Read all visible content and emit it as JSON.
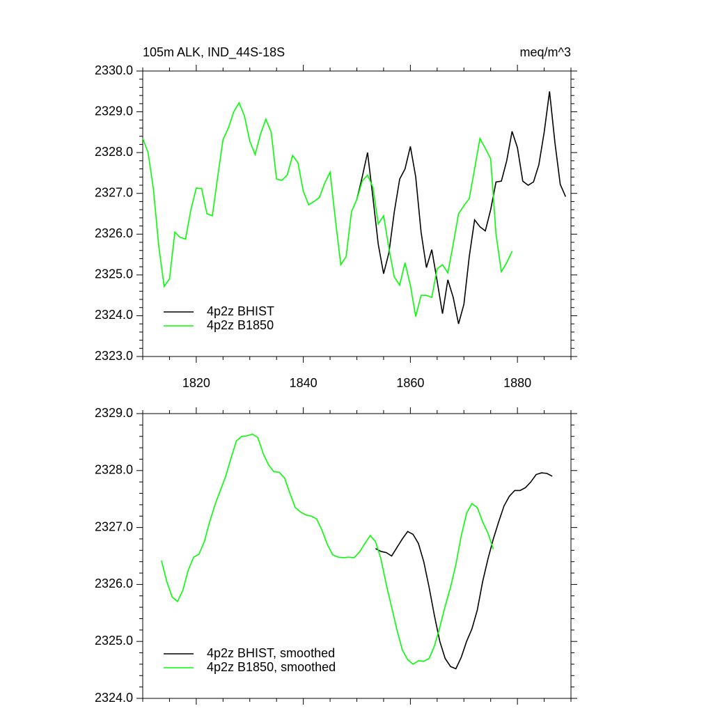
{
  "chart_data": [
    {
      "type": "line",
      "title": "105m ALK, IND_44S-18S",
      "subtitle": "meq/m^3",
      "xlim": [
        1810,
        1890
      ],
      "xticks": [
        1820,
        1840,
        1860,
        1880
      ],
      "show_xtick_labels": true,
      "ylim": [
        2323,
        2330
      ],
      "yticks": [
        {
          "value": 2323,
          "label": "2323.0"
        },
        {
          "value": 2324,
          "label": "2324.0"
        },
        {
          "value": 2325,
          "label": "2325.0"
        },
        {
          "value": 2326,
          "label": "2326.0"
        },
        {
          "value": 2327,
          "label": "2327.0"
        },
        {
          "value": 2328,
          "label": "2328.0"
        },
        {
          "value": 2329,
          "label": "2329.0"
        },
        {
          "value": 2330,
          "label": "2330.0"
        }
      ],
      "legend": "lower left",
      "series": [
        {
          "name": "4p2z BHIST",
          "color": "#000000",
          "x": [
            1850,
            1851,
            1852,
            1853,
            1854,
            1855,
            1856,
            1857,
            1858,
            1859,
            1860,
            1861,
            1862,
            1863,
            1864,
            1865,
            1866,
            1867,
            1868,
            1869,
            1870,
            1871,
            1872,
            1873,
            1874,
            1875,
            1876,
            1877,
            1878,
            1879,
            1880,
            1881,
            1882,
            1883,
            1884,
            1885,
            1886,
            1887,
            1888,
            1889
          ],
          "values": [
            2326.85,
            2327.4,
            2328.0,
            2326.9,
            2325.75,
            2325.03,
            2325.55,
            2326.55,
            2327.35,
            2327.6,
            2328.15,
            2327.4,
            2326.05,
            2325.18,
            2325.62,
            2324.85,
            2324.05,
            2324.88,
            2324.45,
            2323.8,
            2324.28,
            2325.45,
            2326.35,
            2326.18,
            2326.08,
            2326.6,
            2327.28,
            2327.3,
            2327.8,
            2328.52,
            2328.12,
            2327.3,
            2327.2,
            2327.28,
            2327.7,
            2328.5,
            2329.5,
            2328.25,
            2327.22,
            2326.92
          ]
        },
        {
          "name": "4p2z B1850",
          "color": "#00ff00",
          "x": [
            1810,
            1811,
            1812,
            1813,
            1814,
            1815,
            1816,
            1817,
            1818,
            1819,
            1820,
            1821,
            1822,
            1823,
            1824,
            1825,
            1826,
            1827,
            1828,
            1829,
            1830,
            1831,
            1832,
            1833,
            1834,
            1835,
            1836,
            1837,
            1838,
            1839,
            1840,
            1841,
            1842,
            1843,
            1844,
            1845,
            1846,
            1847,
            1848,
            1849,
            1850,
            1851,
            1852,
            1853,
            1854,
            1855,
            1856,
            1857,
            1858,
            1859,
            1860,
            1861,
            1862,
            1863,
            1864,
            1865,
            1866,
            1867,
            1868,
            1869,
            1870,
            1871,
            1872,
            1873,
            1874,
            1875,
            1876,
            1877,
            1878,
            1879
          ],
          "values": [
            2328.35,
            2328.0,
            2327.1,
            2325.7,
            2324.72,
            2324.9,
            2326.05,
            2325.92,
            2325.88,
            2326.6,
            2327.13,
            2327.12,
            2326.5,
            2326.45,
            2327.4,
            2328.32,
            2328.6,
            2329.0,
            2329.22,
            2328.9,
            2328.28,
            2327.95,
            2328.45,
            2328.82,
            2328.5,
            2327.35,
            2327.32,
            2327.45,
            2327.93,
            2327.75,
            2327.05,
            2326.72,
            2326.8,
            2326.9,
            2327.25,
            2327.52,
            2326.35,
            2325.25,
            2325.45,
            2326.55,
            2326.85,
            2327.3,
            2327.45,
            2327.15,
            2326.25,
            2326.45,
            2325.65,
            2324.95,
            2324.75,
            2325.3,
            2324.75,
            2323.98,
            2324.5,
            2324.5,
            2324.45,
            2325.15,
            2325.25,
            2325.05,
            2325.75,
            2326.5,
            2326.7,
            2326.87,
            2327.6,
            2328.35,
            2328.1,
            2327.85,
            2326.0,
            2325.08,
            2325.3,
            2325.58
          ]
        }
      ]
    },
    {
      "type": "line",
      "xlim": [
        1810,
        1890
      ],
      "xticks": [
        1820,
        1840,
        1860,
        1880
      ],
      "show_xtick_labels": false,
      "ylim": [
        2324,
        2329
      ],
      "yticks": [
        {
          "value": 2324,
          "label": "2324.0"
        },
        {
          "value": 2325,
          "label": "2325.0"
        },
        {
          "value": 2326,
          "label": "2326.0"
        },
        {
          "value": 2327,
          "label": "2327.0"
        },
        {
          "value": 2328,
          "label": "2328.0"
        },
        {
          "value": 2329,
          "label": "2329.0"
        }
      ],
      "legend": "lower left",
      "series": [
        {
          "name": "4p2z BHIST, smoothed",
          "color": "#000000",
          "x": [
            1853.5,
            1854.5,
            1855.5,
            1856.5,
            1857.5,
            1858.5,
            1859.5,
            1860.5,
            1861.5,
            1862.5,
            1863.5,
            1864.5,
            1865.5,
            1866.5,
            1867.5,
            1868.5,
            1869.5,
            1870.5,
            1871.5,
            1872.5,
            1873.5,
            1874.5,
            1875.5,
            1876.5,
            1877.5,
            1878.5,
            1879.5,
            1880.5,
            1881.5,
            1882.5,
            1883.5,
            1884.5,
            1885.5,
            1886.5
          ],
          "values": [
            2326.63,
            2326.58,
            2326.56,
            2326.5,
            2326.65,
            2326.8,
            2326.93,
            2326.88,
            2326.72,
            2326.4,
            2325.95,
            2325.45,
            2325.0,
            2324.7,
            2324.56,
            2324.52,
            2324.72,
            2325.0,
            2325.22,
            2325.55,
            2326.05,
            2326.45,
            2326.8,
            2327.1,
            2327.38,
            2327.55,
            2327.65,
            2327.65,
            2327.7,
            2327.8,
            2327.93,
            2327.96,
            2327.95,
            2327.9
          ]
        },
        {
          "name": "4p2z B1850, smoothed",
          "color": "#00ff00",
          "x": [
            1813.5,
            1814.5,
            1815.5,
            1816.5,
            1817.5,
            1818.5,
            1819.5,
            1820.5,
            1821.5,
            1822.5,
            1823.5,
            1824.5,
            1825.5,
            1826.5,
            1827.5,
            1828.5,
            1829.5,
            1830.5,
            1831.5,
            1832.5,
            1833.5,
            1834.5,
            1835.5,
            1836.5,
            1837.5,
            1838.5,
            1839.5,
            1840.5,
            1841.5,
            1842.5,
            1843.5,
            1844.5,
            1845.5,
            1846.5,
            1847.5,
            1848.5,
            1849.5,
            1850.5,
            1851.5,
            1852.5,
            1853.5,
            1854.5,
            1855.5,
            1856.5,
            1857.5,
            1858.5,
            1859.5,
            1860.5,
            1861.5,
            1862.5,
            1863.5,
            1864.5,
            1865.5,
            1866.5,
            1867.5,
            1868.5,
            1869.5,
            1870.5,
            1871.5,
            1872.5,
            1873.5,
            1874.5,
            1875.5
          ],
          "values": [
            2326.42,
            2326.05,
            2325.78,
            2325.7,
            2325.9,
            2326.25,
            2326.48,
            2326.53,
            2326.75,
            2327.1,
            2327.4,
            2327.65,
            2327.9,
            2328.22,
            2328.52,
            2328.6,
            2328.61,
            2328.64,
            2328.58,
            2328.3,
            2328.1,
            2327.98,
            2327.97,
            2327.87,
            2327.6,
            2327.35,
            2327.27,
            2327.22,
            2327.2,
            2327.15,
            2326.95,
            2326.7,
            2326.52,
            2326.48,
            2326.47,
            2326.48,
            2326.47,
            2326.57,
            2326.72,
            2326.86,
            2326.75,
            2326.45,
            2326.0,
            2325.6,
            2325.2,
            2324.85,
            2324.68,
            2324.6,
            2324.66,
            2324.65,
            2324.7,
            2324.92,
            2325.25,
            2325.62,
            2325.95,
            2326.35,
            2326.85,
            2327.25,
            2327.42,
            2327.35,
            2327.1,
            2326.9,
            2326.62
          ]
        }
      ]
    }
  ]
}
